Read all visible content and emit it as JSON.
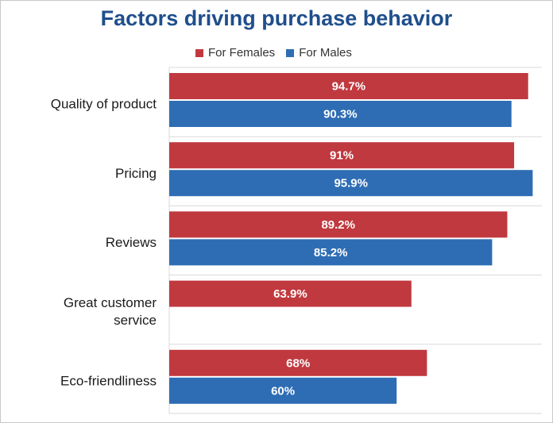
{
  "chart_data": {
    "type": "bar",
    "orientation": "horizontal",
    "title": "Factors driving purchase behavior",
    "legend_position": "top",
    "categories": [
      [
        "Quality of product"
      ],
      [
        "Pricing"
      ],
      [
        "Reviews"
      ],
      [
        "Great customer",
        "service"
      ],
      [
        "Eco-friendliness"
      ]
    ],
    "series": [
      {
        "name": "For Females",
        "color": "#c0393f",
        "values": [
          94.7,
          91,
          89.2,
          63.9,
          68
        ],
        "labels": [
          "94.7%",
          "91%",
          "89.2%",
          "63.9%",
          "68%"
        ]
      },
      {
        "name": "For Males",
        "color": "#2e6db4",
        "values": [
          90.3,
          95.9,
          85.2,
          null,
          60
        ],
        "labels": [
          "90.3%",
          "95.9%",
          "85.2%",
          "",
          "60%"
        ]
      }
    ],
    "xlim": [
      0,
      100
    ],
    "grid": true
  }
}
